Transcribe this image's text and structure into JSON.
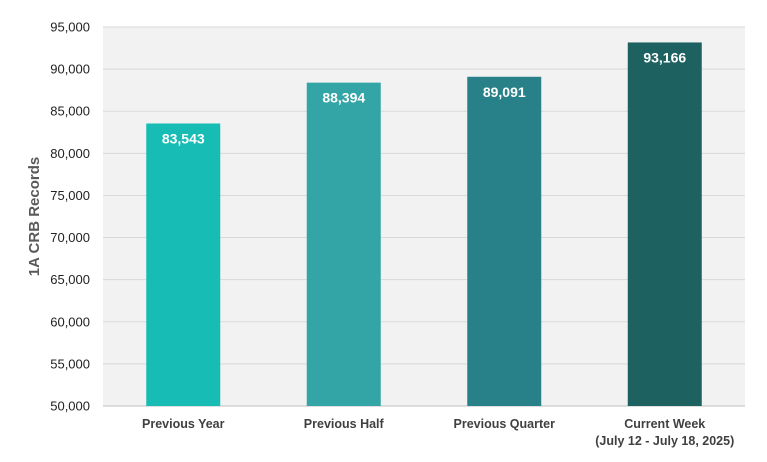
{
  "chart_data": {
    "type": "bar",
    "categories": [
      [
        "Previous Year"
      ],
      [
        "Previous Half"
      ],
      [
        "Previous Quarter"
      ],
      [
        "Current Week",
        "(July 12 - July 18, 2025)"
      ]
    ],
    "values": [
      83543,
      88394,
      89091,
      93166
    ],
    "data_labels": [
      "83,543",
      "88,394",
      "89,091",
      "93,166"
    ],
    "ylabel": "1A CRB Records",
    "xlabel": "",
    "ylim": [
      50000,
      95000
    ],
    "yticks": [
      50000,
      55000,
      60000,
      65000,
      70000,
      75000,
      80000,
      85000,
      90000,
      95000
    ],
    "ytick_labels": [
      "50,000",
      "55,000",
      "60,000",
      "65,000",
      "70,000",
      "75,000",
      "80,000",
      "85,000",
      "90,000",
      "95,000"
    ],
    "grid": true,
    "colors": [
      "#17BDB5",
      "#33A5A6",
      "#288189",
      "#1E6161"
    ],
    "plot_background": "#F2F2F2",
    "grid_color": "#D9D9D9"
  }
}
